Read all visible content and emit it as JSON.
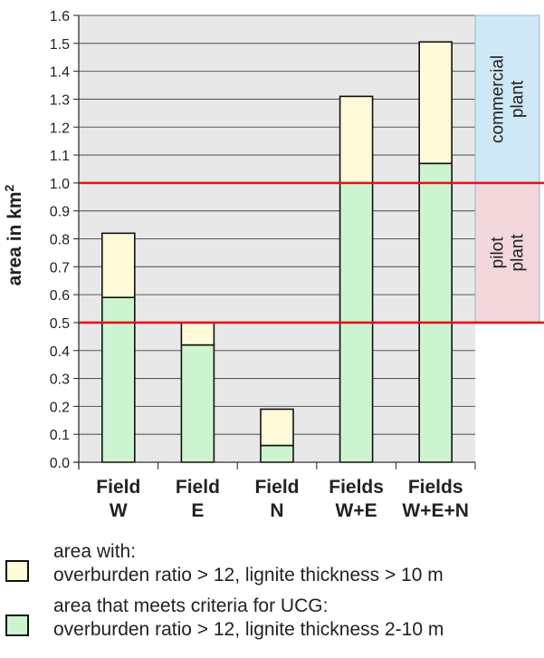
{
  "chart_data": {
    "type": "bar",
    "stacked": true,
    "categories": [
      "Field\nW",
      "Field\nE",
      "Field\nN",
      "Fields\nW+E",
      "Fields\nW+E+N"
    ],
    "series": [
      {
        "name": "area that meets criteria for UCG: overburden ratio > 12, lignite thickness 2-10 m",
        "values": [
          0.59,
          0.42,
          0.06,
          1.0,
          1.07
        ]
      },
      {
        "name": "area with: overburden ratio > 12, lignite thickness > 10 m",
        "values": [
          0.23,
          0.08,
          0.13,
          0.31,
          0.435
        ]
      }
    ],
    "totals": [
      0.82,
      0.5,
      0.19,
      1.31,
      1.505
    ],
    "ylabel": "area in km²",
    "ylabel_base": "area in km",
    "ylabel_sup": "2",
    "ylim": [
      0,
      1.6
    ],
    "yticks": [
      "0.0",
      "0.1",
      "0.2",
      "0.3",
      "0.4",
      "0.5",
      "0.6",
      "0.7",
      "0.8",
      "0.9",
      "1.0",
      "1.1",
      "1.2",
      "1.3",
      "1.4",
      "1.5",
      "1.6"
    ],
    "grid": true,
    "thresholds": [
      0.5,
      1.0
    ],
    "bands": [
      {
        "label_lines": [
          "pilot",
          "plant"
        ],
        "from": 0.5,
        "to": 1.0,
        "color": "#f2d7db"
      },
      {
        "label_lines": [
          "commercial",
          "plant"
        ],
        "from": 1.0,
        "to": 1.6,
        "color": "#cfe8f5"
      }
    ],
    "legend_position": "bottom"
  },
  "colors": {
    "green": "#ccf5cf",
    "yellow": "#fffbd8",
    "threshold": "#e0151b",
    "grid": "#5a5a5a",
    "plot_bg": "#e8e8e8"
  },
  "legend": [
    {
      "line1": "area with:",
      "line2": "overburden ratio > 12, lignite thickness > 10 m"
    },
    {
      "line1": "area that meets criteria for UCG:",
      "line2": "overburden ratio > 12, lignite thickness 2-10 m"
    }
  ]
}
